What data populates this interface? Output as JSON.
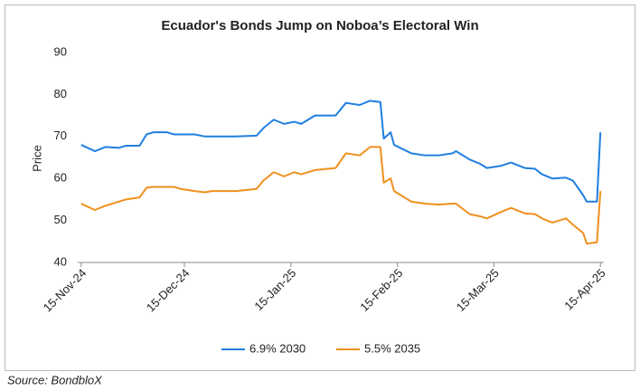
{
  "chart_data": {
    "type": "line",
    "title": "Ecuador's Bonds Jump on Noboa’s Electoral Win",
    "y_label": "Price",
    "source": "Source: BondbloX",
    "x": [
      "2024-11-15",
      "2024-11-19",
      "2024-11-22",
      "2024-11-26",
      "2024-11-28",
      "2024-12-02",
      "2024-12-04",
      "2024-12-06",
      "2024-12-10",
      "2024-12-12",
      "2024-12-14",
      "2024-12-18",
      "2024-12-21",
      "2024-12-23",
      "2024-12-30",
      "2025-01-05",
      "2025-01-07",
      "2025-01-10",
      "2025-01-13",
      "2025-01-16",
      "2025-01-18",
      "2025-01-22",
      "2025-01-28",
      "2025-01-31",
      "2025-02-04",
      "2025-02-07",
      "2025-02-10",
      "2025-02-11",
      "2025-02-13",
      "2025-02-14",
      "2025-02-19",
      "2025-02-23",
      "2025-02-27",
      "2025-03-03",
      "2025-03-04",
      "2025-03-08",
      "2025-03-11",
      "2025-03-13",
      "2025-03-17",
      "2025-03-20",
      "2025-03-24",
      "2025-03-27",
      "2025-03-29",
      "2025-04-01",
      "2025-04-05",
      "2025-04-07",
      "2025-04-10",
      "2025-04-11",
      "2025-04-14",
      "2025-04-15"
    ],
    "series": [
      {
        "name": "6.9% 2030",
        "color": "#1f7fe0",
        "values": [
          68,
          66.5,
          67.5,
          67.3,
          67.8,
          67.8,
          70.5,
          71,
          71,
          70.5,
          70.5,
          70.5,
          70,
          70,
          70,
          70.2,
          72,
          74,
          73,
          73.5,
          73,
          75,
          75,
          78,
          77.5,
          78.5,
          78.2,
          69.5,
          71,
          68,
          66,
          65.5,
          65.5,
          66,
          66.5,
          64.5,
          63.5,
          62.5,
          63,
          63.8,
          62.5,
          62.3,
          61,
          60,
          60.2,
          59.5,
          56,
          54.5,
          54.5,
          71
        ]
      },
      {
        "name": "5.5% 2035",
        "color": "#f0901e",
        "values": [
          54,
          52.5,
          53.5,
          54.5,
          55,
          55.5,
          57.8,
          58,
          58,
          58,
          57.5,
          57,
          56.7,
          57,
          57,
          57.5,
          59.5,
          61.5,
          60.5,
          61.5,
          61,
          62,
          62.5,
          66,
          65.5,
          67.5,
          67.5,
          59,
          60,
          57,
          54.5,
          54,
          53.8,
          54,
          54,
          51.5,
          51,
          50.5,
          52,
          53,
          51.7,
          51.5,
          50.5,
          49.5,
          50.5,
          49,
          47,
          44.5,
          44.8,
          57
        ]
      }
    ],
    "xlim": [
      "2024-11-14",
      "2025-04-16"
    ],
    "xticks": [
      {
        "value": "2024-11-15",
        "label": "15-Nov-24"
      },
      {
        "value": "2024-12-15",
        "label": "15-Dec-24"
      },
      {
        "value": "2025-01-15",
        "label": "15-Jan-25"
      },
      {
        "value": "2025-02-15",
        "label": "15-Feb-25"
      },
      {
        "value": "2025-03-15",
        "label": "15-Mar-25"
      },
      {
        "value": "2025-04-15",
        "label": "15-Apr-25"
      }
    ],
    "ylim": [
      40,
      90
    ],
    "yticks": [
      40,
      50,
      60,
      70,
      80,
      90
    ],
    "grid": false,
    "legend": "bottom"
  }
}
